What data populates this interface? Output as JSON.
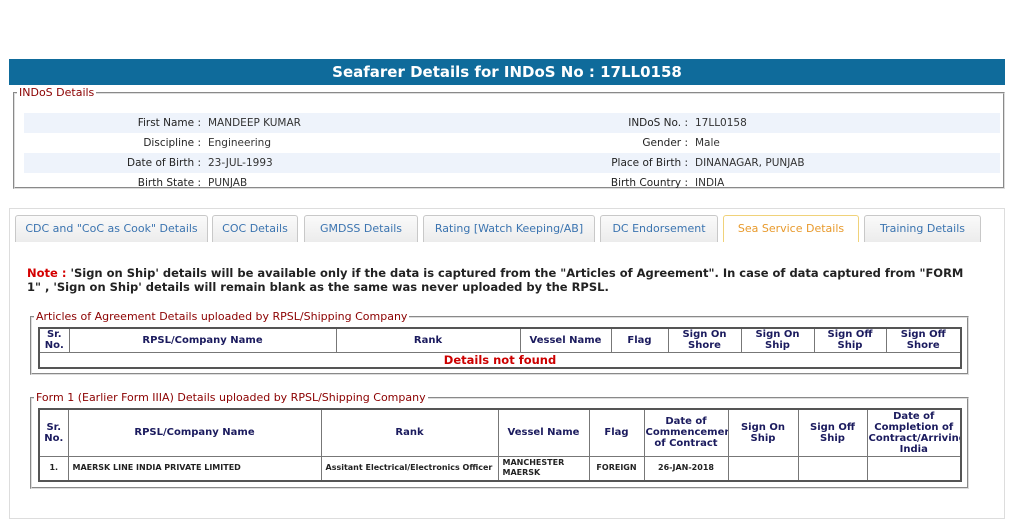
{
  "header": {
    "title": "Seafarer Details for INDoS No : 17LL0158"
  },
  "indos_details": {
    "legend": "INDoS Details",
    "rows": [
      [
        {
          "label": "First Name :",
          "value": "MANDEEP KUMAR"
        },
        {
          "label": "INDoS No. :",
          "value": "17LL0158"
        }
      ],
      [
        {
          "label": "Discipline :",
          "value": "Engineering"
        },
        {
          "label": "Gender :",
          "value": "Male"
        }
      ],
      [
        {
          "label": "Date of Birth :",
          "value": "23-JUL-1993"
        },
        {
          "label": "Place of Birth :",
          "value": "DINANAGAR, PUNJAB"
        }
      ],
      [
        {
          "label": "Birth State :",
          "value": "PUNJAB"
        },
        {
          "label": "Birth Country :",
          "value": "INDIA"
        }
      ]
    ]
  },
  "tabs": [
    "CDC and \"CoC as Cook\" Details",
    "COC Details",
    "GMDSS Details",
    "Rating [Watch Keeping/AB]",
    "DC Endorsement",
    "Sea Service Details",
    "Training Details"
  ],
  "note": {
    "label": "Note :",
    "text": "'Sign on Ship' details will be available only if the data is captured from the \"Articles of Agreement\". In case of data captured from \"FORM 1\" , 'Sign on Ship' details will remain blank as the same was never uploaded by the RPSL."
  },
  "articles": {
    "legend": "Articles of Agreement Details uploaded by RPSL/Shipping Company",
    "columns": [
      "Sr. No.",
      "RPSL/Company Name",
      "Rank",
      "Vessel Name",
      "Flag",
      "Sign On Shore",
      "Sign On Ship",
      "Sign Off Ship",
      "Sign Off Shore"
    ],
    "empty": "Details not found"
  },
  "form1": {
    "legend": "Form 1 (Earlier Form IIIA) Details uploaded by RPSL/Shipping Company",
    "columns": [
      "Sr. No.",
      "RPSL/Company Name",
      "Rank",
      "Vessel Name",
      "Flag",
      "Date of Commencement of Contract",
      "Sign On Ship",
      "Sign Off Ship",
      "Date of Completion of Contract/Arriving India"
    ],
    "rows": [
      [
        "1.",
        "MAERSK LINE INDIA PRIVATE LIMITED",
        "Assitant Electrical/Electronics Officer",
        "MANCHESTER MAERSK",
        "FOREIGN",
        "26-JAN-2018",
        "",
        "",
        ""
      ]
    ]
  }
}
